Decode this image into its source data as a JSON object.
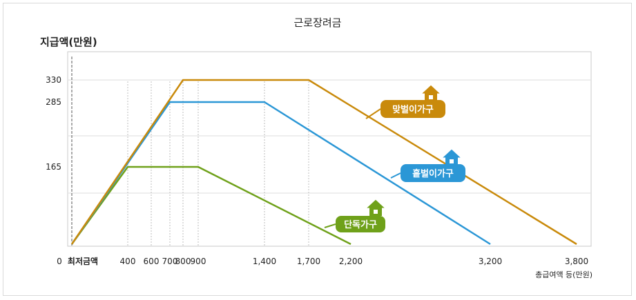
{
  "chart_data": {
    "type": "line",
    "title": "근로장려금",
    "ylabel": "지급액(만원)",
    "xlabel": "총급여액 등(만원)",
    "x_tick_labels": [
      "0",
      "최저금액",
      "400",
      "600",
      "700",
      "800",
      "900",
      "1,400",
      "1,700",
      "2,200",
      "3,200",
      "3,800"
    ],
    "y_tick_labels": [
      "330",
      "285",
      "165"
    ],
    "xlim": [
      0,
      3800
    ],
    "ylim": [
      0,
      330
    ],
    "grid": true,
    "series": [
      {
        "name": "단독가구",
        "color": "#6fa11a",
        "points": [
          [
            0,
            0
          ],
          [
            400,
            165
          ],
          [
            900,
            165
          ],
          [
            2200,
            0
          ]
        ]
      },
      {
        "name": "홑벌이가구",
        "color": "#2b97d6",
        "points": [
          [
            0,
            0
          ],
          [
            700,
            285
          ],
          [
            1400,
            285
          ],
          [
            3200,
            0
          ]
        ]
      },
      {
        "name": "맞벌이가구",
        "color": "#c98a0b",
        "points": [
          [
            0,
            0
          ],
          [
            800,
            330
          ],
          [
            1700,
            330
          ],
          [
            3800,
            0
          ]
        ]
      }
    ],
    "legend_placement": "inline"
  }
}
